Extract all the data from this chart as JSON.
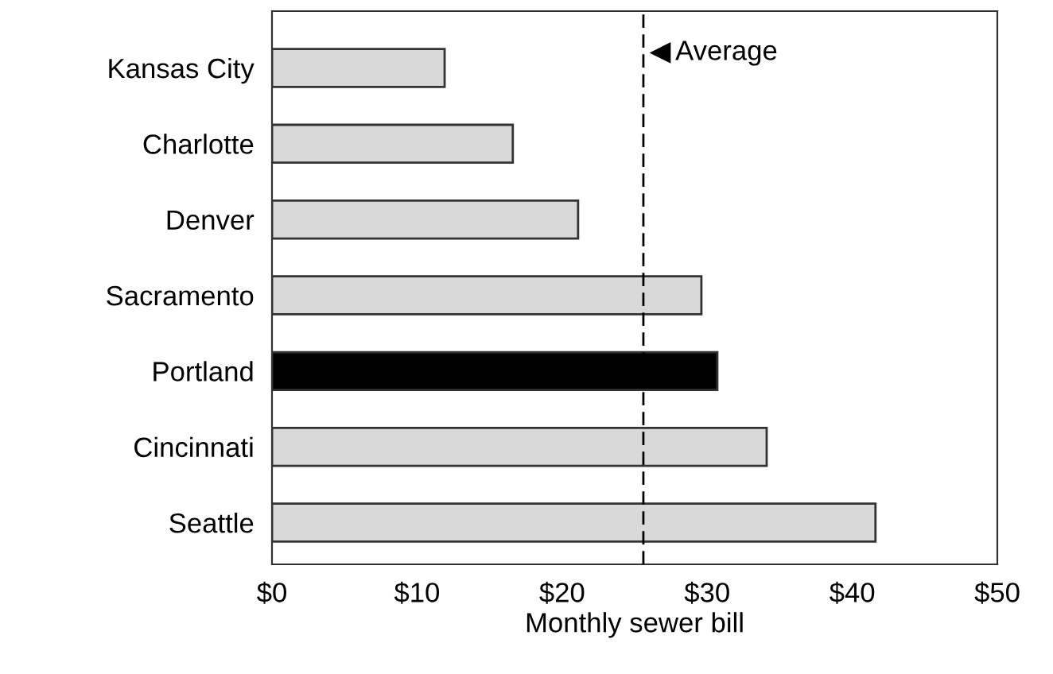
{
  "chart_data": {
    "type": "bar",
    "orientation": "horizontal",
    "xlabel": "Monthly sewer bill",
    "categories": [
      "Kansas City",
      "Charlotte",
      "Denver",
      "Sacramento",
      "Portland",
      "Cincinnati",
      "Seattle"
    ],
    "values": [
      11.9,
      16.6,
      21.1,
      29.6,
      30.7,
      34.1,
      41.6
    ],
    "colors": [
      "#d9d9d9",
      "#d9d9d9",
      "#d9d9d9",
      "#d9d9d9",
      "#000000",
      "#d9d9d9",
      "#d9d9d9"
    ],
    "xlim": [
      0,
      50
    ],
    "xticks": [
      {
        "value": 0,
        "label": "$0"
      },
      {
        "value": 10,
        "label": "$10"
      },
      {
        "value": 20,
        "label": "$20"
      },
      {
        "value": 30,
        "label": "$30"
      },
      {
        "value": 40,
        "label": "$40"
      },
      {
        "value": 50,
        "label": "$50"
      }
    ],
    "ref_lines": [
      {
        "axis": "x",
        "value": 25.6,
        "label": "Average",
        "color": "#000000",
        "line_style": "dashed"
      }
    ]
  }
}
